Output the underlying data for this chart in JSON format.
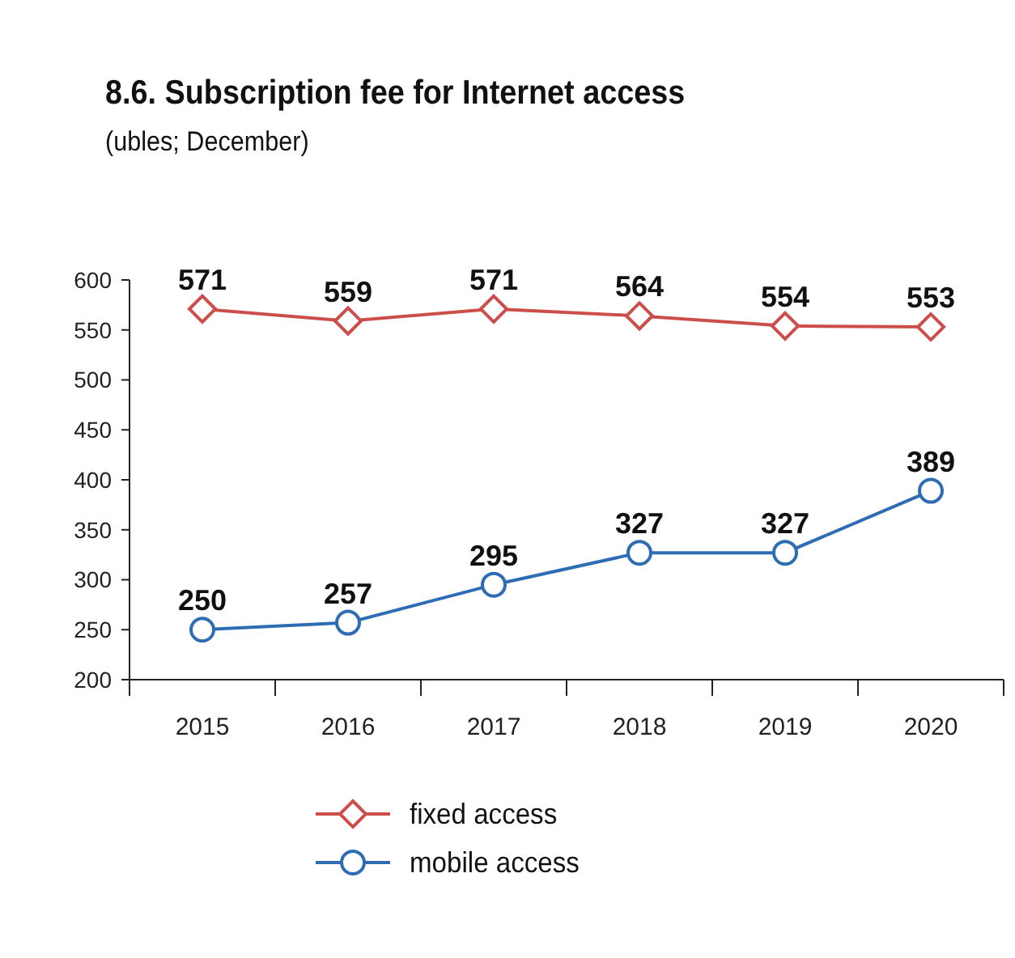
{
  "chart_data": {
    "type": "line",
    "title": "8.6. Subscription fee for Internet access",
    "subtitle": "(ubles; December)",
    "categories": [
      "2015",
      "2016",
      "2017",
      "2018",
      "2019",
      "2020"
    ],
    "series": [
      {
        "name": "fixed access",
        "color": "#cc4e4a",
        "marker": "diamond",
        "values": [
          571,
          559,
          571,
          564,
          554,
          553
        ]
      },
      {
        "name": "mobile access",
        "color": "#2e6db4",
        "marker": "circle",
        "values": [
          250,
          257,
          295,
          327,
          327,
          389
        ]
      }
    ],
    "ylim": [
      200,
      600
    ],
    "yticks": [
      200,
      250,
      300,
      350,
      400,
      450,
      500,
      550,
      600
    ],
    "grid": false,
    "legend": "bottom",
    "data_labels": true,
    "line_style": "solid"
  }
}
